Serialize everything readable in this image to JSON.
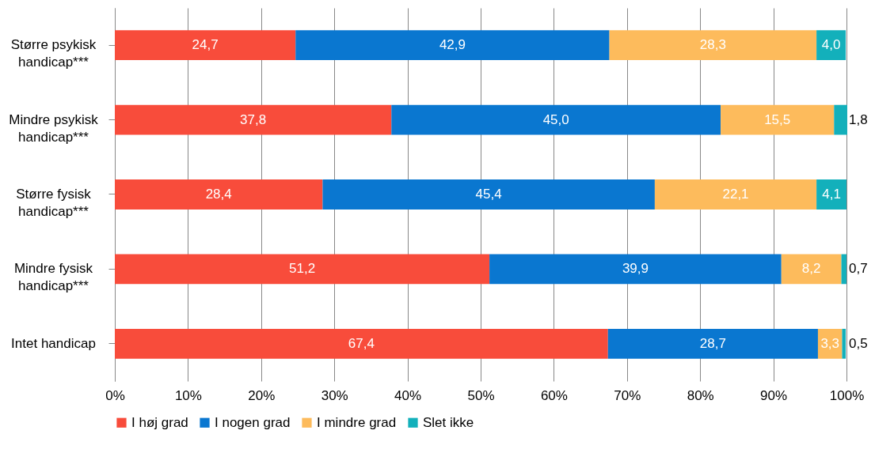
{
  "chart_data": {
    "type": "bar",
    "orientation": "horizontal",
    "stacked": true,
    "categories": [
      "Større psykisk handicap***",
      "Mindre psykisk handicap***",
      "Større fysisk handicap***",
      "Mindre fysisk handicap***",
      "Intet handicap"
    ],
    "series": [
      {
        "name": "I høj grad",
        "color": "#f84c3b",
        "values": [
          24.7,
          37.8,
          28.4,
          51.2,
          67.4
        ],
        "value_labels": [
          "24,7",
          "37,8",
          "28,4",
          "51,2",
          "67,4"
        ]
      },
      {
        "name": "I nogen grad",
        "color": "#0a77d0",
        "values": [
          42.9,
          45.0,
          45.4,
          39.9,
          28.7
        ],
        "value_labels": [
          "42,9",
          "45,0",
          "45,4",
          "39,9",
          "28,7"
        ]
      },
      {
        "name": "I mindre grad",
        "color": "#fdbb5c",
        "values": [
          28.3,
          15.5,
          22.1,
          8.2,
          3.3
        ],
        "value_labels": [
          "28,3",
          "15,5",
          "22,1",
          "8,2",
          "3,3"
        ]
      },
      {
        "name": "Slet ikke",
        "color": "#13b0bb",
        "values": [
          4.0,
          1.8,
          4.1,
          0.7,
          0.5
        ],
        "value_labels": [
          "4,0",
          "1,8",
          "4,1",
          "0,7",
          "0,5"
        ]
      }
    ],
    "xlim": [
      0,
      100
    ],
    "xticks": [
      {
        "value": 0,
        "label": "0%"
      },
      {
        "value": 10,
        "label": "10%"
      },
      {
        "value": 20,
        "label": "20%"
      },
      {
        "value": 30,
        "label": "30%"
      },
      {
        "value": 40,
        "label": "40%"
      },
      {
        "value": 50,
        "label": "50%"
      },
      {
        "value": 60,
        "label": "60%"
      },
      {
        "value": 70,
        "label": "70%"
      },
      {
        "value": 80,
        "label": "80%"
      },
      {
        "value": 90,
        "label": "90%"
      },
      {
        "value": 100,
        "label": "100%"
      }
    ],
    "grid": "x",
    "legend": "bottom"
  }
}
